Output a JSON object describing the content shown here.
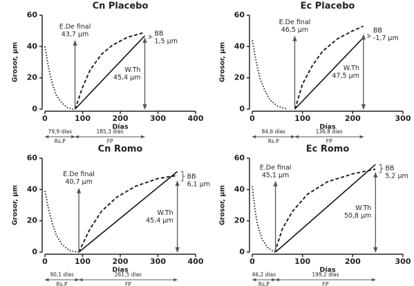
{
  "chart_data": [
    {
      "type": "line",
      "title": "Cn Placebo",
      "xlabel": "Días",
      "ylabel": "Grosor, µm",
      "xlim": [
        0,
        400
      ],
      "xticks": [
        0,
        100,
        200,
        300,
        400
      ],
      "ylim": [
        0,
        60
      ],
      "yticks": [
        0,
        20,
        40,
        60
      ],
      "series": [
        {
          "style": "dotted",
          "color": "#222",
          "x": [
            0,
            10,
            20,
            30,
            45,
            60,
            75
          ],
          "values": [
            40,
            26,
            16,
            9,
            4,
            1,
            0
          ]
        },
        {
          "style": "dashed",
          "color": "#222",
          "x": [
            80,
            100,
            120,
            150,
            180,
            220,
            265
          ],
          "values": [
            0,
            14,
            25,
            35,
            41,
            46,
            49
          ]
        }
      ],
      "e_de": {
        "label": "E.De final",
        "value": 43.7,
        "value_label": "43,7 µm"
      },
      "wth": {
        "label": "W.Th",
        "value": 45.4,
        "value_label": "45,4 µm"
      },
      "bb": {
        "label": "BB",
        "value": 1.5,
        "value_label": "1,5 µm"
      },
      "rs_p": {
        "label": "Rs.P",
        "value": 79.9,
        "value_label": "79,9 días"
      },
      "fp": {
        "label": "FP",
        "value": 185.3,
        "value_label": "185,3 días"
      }
    },
    {
      "type": "line",
      "title": "Ec Placebo",
      "xlabel": "Días",
      "ylabel": "Grosor, µm",
      "xlim": [
        0,
        300
      ],
      "xticks": [
        0,
        100,
        200,
        300
      ],
      "ylim": [
        0,
        60
      ],
      "yticks": [
        0,
        20,
        40,
        60
      ],
      "series": [
        {
          "style": "dotted",
          "color": "#222",
          "x": [
            0,
            8,
            15,
            25,
            35,
            50,
            70
          ],
          "values": [
            44,
            30,
            20,
            12,
            6,
            2,
            0
          ]
        },
        {
          "style": "dashed",
          "color": "#222",
          "x": [
            85,
            100,
            120,
            140,
            170,
            200,
            221
          ],
          "values": [
            0,
            16,
            28,
            37,
            45,
            50,
            53
          ]
        }
      ],
      "e_de": {
        "label": "E.De final",
        "value": 46.5,
        "value_label": "46,5 µm"
      },
      "wth": {
        "label": "W.Th",
        "value": 47.5,
        "value_label": "47,5 µm"
      },
      "bb": {
        "label": "BB",
        "value": -1.7,
        "value_label": "-1,7 µm"
      },
      "rs_p": {
        "label": "Rs.P",
        "value": 84.6,
        "value_label": "84,6 días"
      },
      "fp": {
        "label": "FP",
        "value": 136.8,
        "value_label": "136,8 días"
      }
    },
    {
      "type": "line",
      "title": "Cn Romo",
      "xlabel": "Días",
      "ylabel": "Grosor, µm",
      "xlim": [
        0,
        400
      ],
      "xticks": [
        0,
        100,
        200,
        300,
        400
      ],
      "ylim": [
        0,
        60
      ],
      "yticks": [
        0,
        20,
        40,
        60
      ],
      "series": [
        {
          "style": "dotted",
          "color": "#222",
          "x": [
            0,
            10,
            20,
            30,
            45,
            65,
            90
          ],
          "values": [
            39,
            27,
            18,
            11,
            5,
            1,
            0
          ]
        },
        {
          "style": "dashed",
          "color": "#222",
          "x": [
            90,
            120,
            150,
            190,
            240,
            300,
            352
          ],
          "values": [
            0,
            15,
            26,
            35,
            42,
            47,
            49
          ]
        }
      ],
      "e_de": {
        "label": "E.De final",
        "value": 40.7,
        "value_label": "40,7 µm"
      },
      "wth": {
        "label": "W.Th",
        "value": 45.4,
        "value_label": "45,4 µm"
      },
      "bb": {
        "label": "BB",
        "value": 6.1,
        "value_label": "6,1 µm"
      },
      "rs_p": {
        "label": "Rs.P",
        "value": 90.1,
        "value_label": "90,1 días"
      },
      "fp": {
        "label": "FP",
        "value": 261.5,
        "value_label": "261,5 días"
      }
    },
    {
      "type": "line",
      "title": "Ec Romo",
      "xlabel": "Días",
      "ylabel": "Grosor, µm",
      "xlim": [
        0,
        300
      ],
      "xticks": [
        0,
        100,
        200,
        300
      ],
      "ylim": [
        0,
        60
      ],
      "yticks": [
        0,
        20,
        40,
        60
      ],
      "series": [
        {
          "style": "dotted",
          "color": "#222",
          "x": [
            0,
            5,
            10,
            20,
            30,
            45
          ],
          "values": [
            42,
            28,
            18,
            8,
            3,
            0
          ]
        },
        {
          "style": "dashed",
          "color": "#222",
          "x": [
            45,
            60,
            80,
            110,
            150,
            200,
            245
          ],
          "values": [
            0,
            15,
            26,
            37,
            45,
            50,
            53
          ]
        }
      ],
      "e_de": {
        "label": "E.De final",
        "value": 45.1,
        "value_label": "45,1 µm"
      },
      "wth": {
        "label": "W.Th",
        "value": 50.8,
        "value_label": "50,8 µm"
      },
      "bb": {
        "label": "BB",
        "value": 5.2,
        "value_label": "5,2 µm"
      },
      "rs_p": {
        "label": "Rs.P",
        "value": 46.2,
        "value_label": "46,2 días"
      },
      "fp": {
        "label": "FP",
        "value": 199.2,
        "value_label": "199,2 días"
      }
    }
  ]
}
